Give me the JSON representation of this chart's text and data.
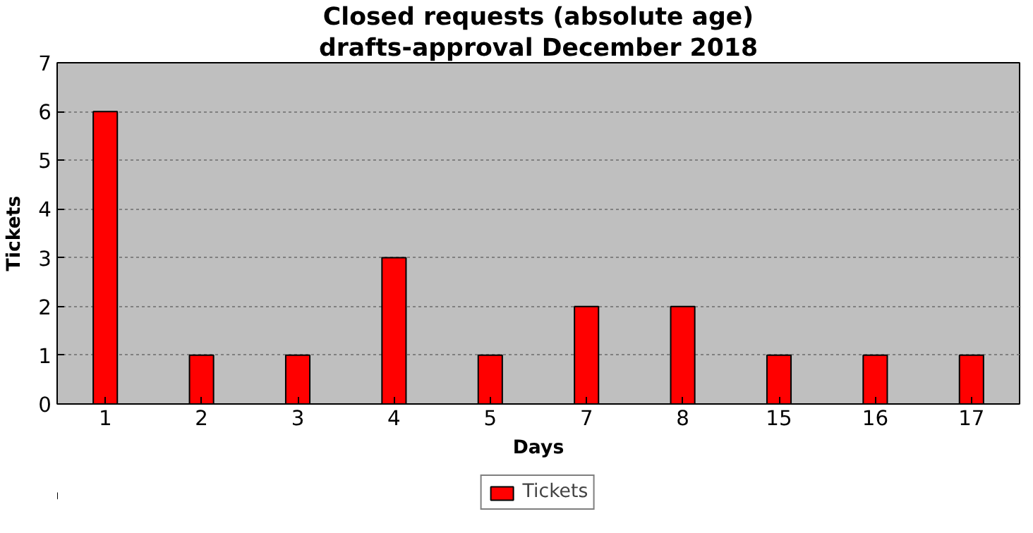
{
  "chart_data": {
    "type": "bar",
    "title": "Closed requests (absolute age)",
    "subtitle": "drafts-approval December 2018",
    "xlabel": "Days",
    "ylabel": "Tickets",
    "categories": [
      "1",
      "2",
      "3",
      "4",
      "5",
      "7",
      "8",
      "15",
      "16",
      "17"
    ],
    "series": [
      {
        "name": "Tickets",
        "color": "#ff0000",
        "values": [
          6,
          1,
          1,
          3,
          1,
          2,
          2,
          1,
          1,
          1
        ]
      }
    ],
    "ylim": [
      0,
      7
    ],
    "yticks": [
      0,
      1,
      2,
      3,
      4,
      5,
      6,
      7
    ],
    "grid": "y",
    "legend": "bottom"
  }
}
